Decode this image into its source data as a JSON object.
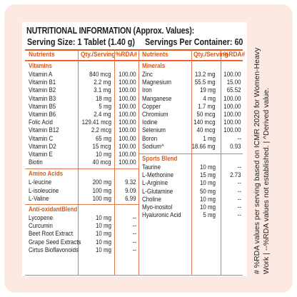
{
  "title": "NUTRITIONAL INFORMATION (Approx. Values):",
  "serving_size": "Serving Size: 1 Tablet (1.40 g)",
  "servings_per_container": "Servings Per Container: 60",
  "columns": {
    "nutrients": "Nutrients",
    "qty": "Qty./Serving",
    "rda": "%RDA#"
  },
  "left": {
    "vitamins": {
      "heading": "Vitamins",
      "rows": [
        [
          "Vitamin A",
          "840 mcg",
          "100.00"
        ],
        [
          "Vitamin B1",
          "2.2 mg",
          "100.00"
        ],
        [
          "Vitamin B2",
          "3.1 mg",
          "100.00"
        ],
        [
          "Vitamin B3",
          "18 mg",
          "100.00"
        ],
        [
          "Vitamin B5",
          "5 mg",
          "100.00"
        ],
        [
          "Vitamin B6",
          "2.4 mg",
          "100.00"
        ],
        [
          "Folic Acid",
          "129.41 mcg",
          "100.00"
        ],
        [
          "Vitamin B12",
          "2.2 mcg",
          "100.00"
        ],
        [
          "Vitamin C",
          "65 mg",
          "100.00"
        ],
        [
          "Vitamin D2",
          "15 mcg",
          "100.00"
        ],
        [
          "Vitamin E",
          "10 mg",
          "100.00"
        ],
        [
          "Biotin",
          "40 mcg",
          "100.00"
        ]
      ]
    },
    "amino": {
      "heading": "Amino Acids",
      "rows": [
        [
          "L-leucine",
          "200 mg",
          "9.32"
        ],
        [
          "L-isoleucine",
          "100 mg",
          "9.09"
        ],
        [
          "L-Valine",
          "100 mg",
          "6.99"
        ]
      ]
    },
    "antiox": {
      "heading": "Anti-oxidantBlend",
      "rows": [
        [
          "Lycopene",
          "10 mg",
          "--"
        ],
        [
          "Curcumin",
          "10 mg",
          "--"
        ],
        [
          "Beet Root Extract",
          "10 mg",
          "--"
        ],
        [
          "Grape Seed Extracts",
          "10 mg",
          "--"
        ],
        [
          "Cirtus Bioflavonoids",
          "10 mg",
          "--"
        ]
      ]
    }
  },
  "right": {
    "minerals": {
      "heading": "Minerals",
      "rows": [
        [
          "Zinc",
          "13.2 mg",
          "100.00"
        ],
        [
          "Magnesium",
          "55.5 mg",
          "15.00"
        ],
        [
          "Iron",
          "19 mg",
          "65.52"
        ],
        [
          "Manganese",
          "4 mg",
          "100.00"
        ],
        [
          "Copper",
          "1.7 mg",
          "100.00"
        ],
        [
          "Chromium",
          "50 mcg",
          "100.00"
        ],
        [
          "Iodine",
          "140 mcg",
          "100.00"
        ],
        [
          "Selenium",
          "40 mcg",
          "100.00"
        ],
        [
          "Boron",
          "1 mg",
          "--"
        ],
        [
          "Sodium^",
          "18.66 mg",
          "0.93"
        ]
      ]
    },
    "sports": {
      "heading": "Sports Blend",
      "rows": [
        [
          "Taurine",
          "10 mg",
          "--"
        ],
        [
          "L-Methonine",
          "15 mg",
          "2.73"
        ],
        [
          "L-Arginine",
          "10 mg",
          "--"
        ],
        [
          "L-Glutamine",
          "50 mg",
          "--"
        ],
        [
          "Choline",
          "10 mg",
          "--"
        ],
        [
          "Myo-inositol",
          "10 mg",
          "--"
        ],
        [
          "Hyaluronic Acid",
          "5 mg",
          "--"
        ]
      ]
    }
  },
  "footnote": "# %RDA values per serving based on ICMR 2020 for Women-Heavy Work | --%RDA values not established. | ^Derived value."
}
